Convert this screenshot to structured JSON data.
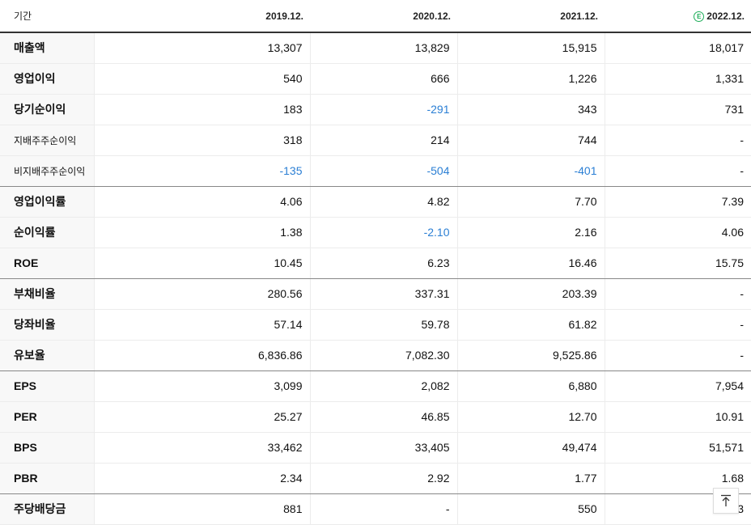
{
  "header": {
    "label": "기간",
    "columns": [
      "2019.12.",
      "2020.12.",
      "2021.12.",
      "2022.12."
    ],
    "estimate_badge": "E"
  },
  "rows": [
    {
      "label": "매출액",
      "values": [
        "13,307",
        "13,829",
        "15,915",
        "18,017"
      ]
    },
    {
      "label": "영업이익",
      "values": [
        "540",
        "666",
        "1,226",
        "1,331"
      ]
    },
    {
      "label": "당기순이익",
      "values": [
        "183",
        "-291",
        "343",
        "731"
      ]
    },
    {
      "label": "지배주주순이익",
      "values": [
        "318",
        "214",
        "744",
        "-"
      ]
    },
    {
      "label": "비지배주주순이익",
      "values": [
        "-135",
        "-504",
        "-401",
        "-"
      ]
    },
    {
      "label": "영업이익률",
      "values": [
        "4.06",
        "4.82",
        "7.70",
        "7.39"
      ]
    },
    {
      "label": "순이익률",
      "values": [
        "1.38",
        "-2.10",
        "2.16",
        "4.06"
      ]
    },
    {
      "label": "ROE",
      "values": [
        "10.45",
        "6.23",
        "16.46",
        "15.75"
      ]
    },
    {
      "label": "부채비율",
      "values": [
        "280.56",
        "337.31",
        "203.39",
        "-"
      ]
    },
    {
      "label": "당좌비율",
      "values": [
        "57.14",
        "59.78",
        "61.82",
        "-"
      ]
    },
    {
      "label": "유보율",
      "values": [
        "6,836.86",
        "7,082.30",
        "9,525.86",
        "-"
      ]
    },
    {
      "label": "EPS",
      "values": [
        "3,099",
        "2,082",
        "6,880",
        "7,954"
      ]
    },
    {
      "label": "PER",
      "values": [
        "25.27",
        "46.85",
        "12.70",
        "10.91"
      ]
    },
    {
      "label": "BPS",
      "values": [
        "33,462",
        "33,405",
        "49,474",
        "51,571"
      ]
    },
    {
      "label": "PBR",
      "values": [
        "2.34",
        "2.92",
        "1.77",
        "1.68"
      ]
    },
    {
      "label": "주당배당금",
      "values": [
        "881",
        "-",
        "550",
        "3"
      ]
    }
  ],
  "colors": {
    "negative": "#2b7fd4",
    "estimate": "#1fae5a"
  },
  "top_button_icon": "arrow-up-icon"
}
